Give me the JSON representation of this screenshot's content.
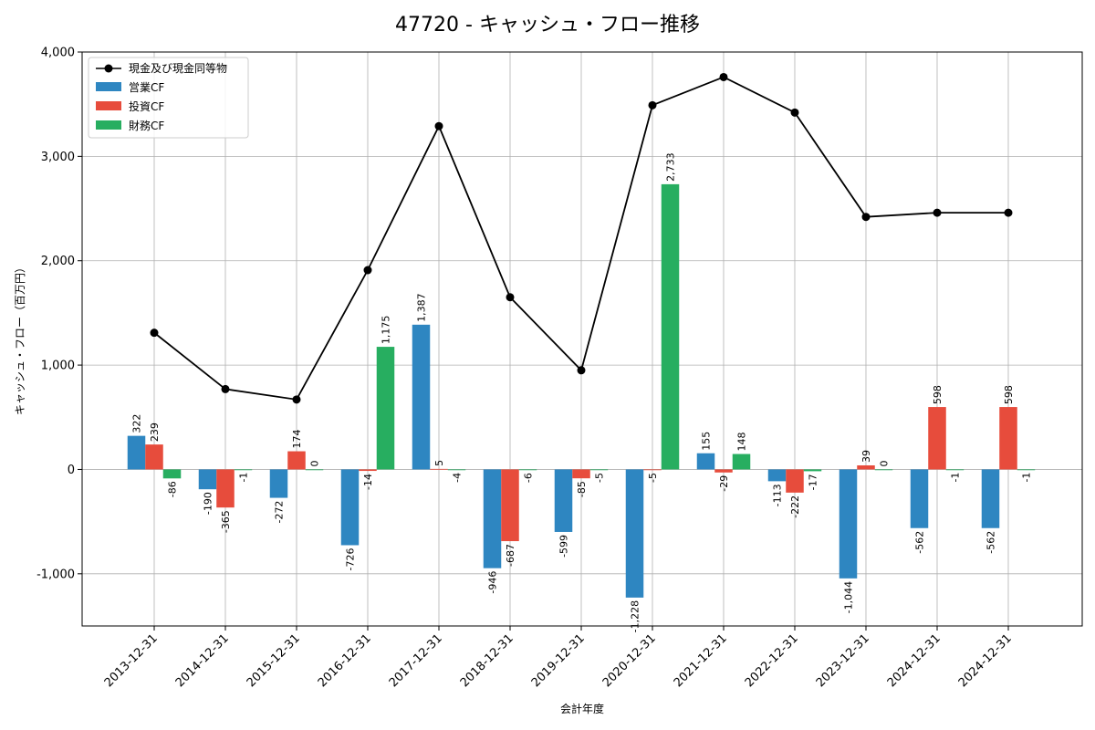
{
  "chart_data": {
    "type": "bar",
    "title": "47720 - キャッシュ・フロー推移",
    "xlabel": "会計年度",
    "ylabel": "キャッシュ・フロー（百万円）",
    "ylim": [
      -1500,
      4000
    ],
    "yticks": [
      -1000,
      0,
      1000,
      2000,
      3000,
      4000
    ],
    "ytick_labels": [
      "-1,000",
      "0",
      "1,000",
      "2,000",
      "3,000",
      "4,000"
    ],
    "grid": true,
    "legend_position": "top-left",
    "categories": [
      "2013-12-31",
      "2014-12-31",
      "2015-12-31",
      "2016-12-31",
      "2017-12-31",
      "2018-12-31",
      "2019-12-31",
      "2020-12-31",
      "2021-12-31",
      "2022-12-31",
      "2023-12-31",
      "2024-12-31",
      "2024-12-31"
    ],
    "series": [
      {
        "name": "営業CF",
        "type": "bar",
        "color": "#2e86c1",
        "values": [
          322,
          -190,
          -272,
          -726,
          1387,
          -946,
          -599,
          -1228,
          155,
          -113,
          -1044,
          -562,
          -562
        ],
        "labels": [
          "322",
          "-190",
          "-272",
          "-726",
          "1,387",
          "-946",
          "-599",
          "-1,228",
          "155",
          "-113",
          "-1,044",
          "-562",
          "-562"
        ]
      },
      {
        "name": "投資CF",
        "type": "bar",
        "color": "#e74c3c",
        "values": [
          239,
          -365,
          174,
          -14,
          5,
          -687,
          -85,
          -5,
          -29,
          -222,
          39,
          598,
          598
        ],
        "labels": [
          "239",
          "-365",
          "174",
          "-14",
          "5",
          "-687",
          "-85",
          "-5",
          "-29",
          "-222",
          "39",
          "598",
          "598"
        ]
      },
      {
        "name": "財務CF",
        "type": "bar",
        "color": "#27ae60",
        "values": [
          -86,
          -1,
          0,
          1175,
          -4,
          -6,
          -5,
          2733,
          148,
          -17,
          0,
          -1,
          -1
        ],
        "labels": [
          "-86",
          "-1",
          "0",
          "1,175",
          "-4",
          "-6",
          "-5",
          "2,733",
          "148",
          "-17",
          "0",
          "-1",
          "-1"
        ]
      },
      {
        "name": "現金及び現金同等物",
        "type": "line",
        "color": "#000000",
        "values": [
          1310,
          770,
          670,
          1910,
          3290,
          1650,
          950,
          3490,
          3760,
          3420,
          2420,
          2460,
          2460
        ]
      }
    ]
  }
}
